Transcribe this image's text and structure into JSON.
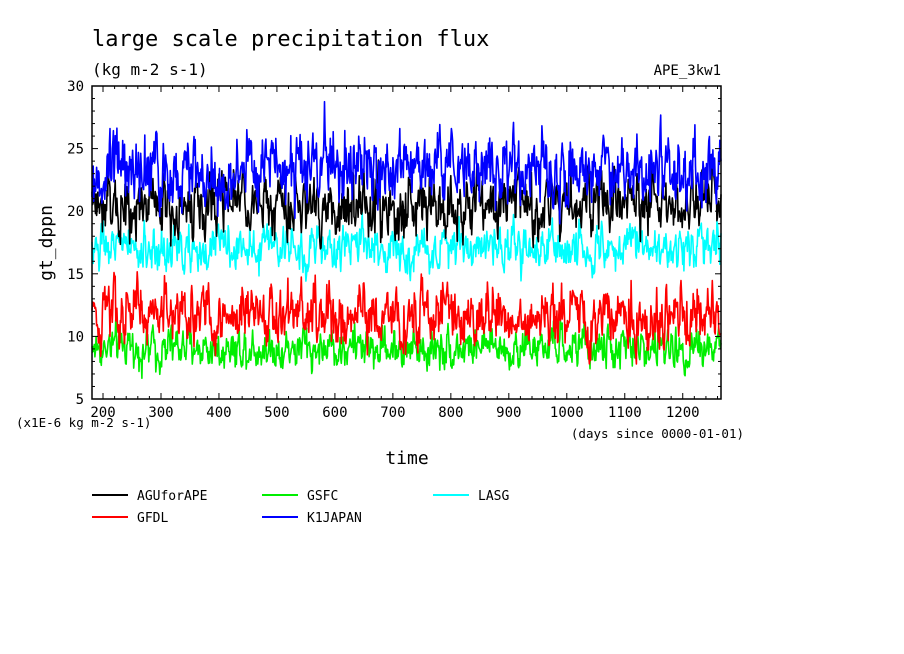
{
  "chart_data": {
    "type": "line",
    "title": "large scale precipitation flux",
    "subtitle": "(kg m-2 s-1)",
    "experiment_label": "APE_3kw1",
    "xlabel": "time",
    "x_units_note": "(days since 0000-01-01)",
    "ylabel": "gt_dppn",
    "y_scale_note": "(x1E-6 kg m-2 s-1)",
    "xlim": [
      181,
      1266
    ],
    "ylim": [
      5,
      30
    ],
    "x_ticks": [
      200,
      300,
      400,
      500,
      600,
      700,
      800,
      900,
      1000,
      1100,
      1200
    ],
    "y_ticks": [
      5,
      10,
      15,
      20,
      25,
      30
    ],
    "grid": false,
    "legend_position": "bottom",
    "series": [
      {
        "name": "AGUforAPE",
        "color": "#000000",
        "mean": 20.5,
        "amp": 2.0,
        "min": 17.0,
        "max": 25.5
      },
      {
        "name": "GFDL",
        "color": "#ff0000",
        "mean": 11.6,
        "amp": 2.0,
        "min": 7.8,
        "max": 17.0
      },
      {
        "name": "GSFC",
        "color": "#00ee00",
        "mean": 9.1,
        "amp": 1.35,
        "min": 6.6,
        "max": 12.0
      },
      {
        "name": "K1JAPAN",
        "color": "#0000ff",
        "mean": 23.3,
        "amp": 2.3,
        "min": 19.0,
        "max": 30.0
      },
      {
        "name": "LASG",
        "color": "#00ffff",
        "mean": 17.0,
        "amp": 1.4,
        "min": 13.8,
        "max": 20.5
      }
    ]
  }
}
